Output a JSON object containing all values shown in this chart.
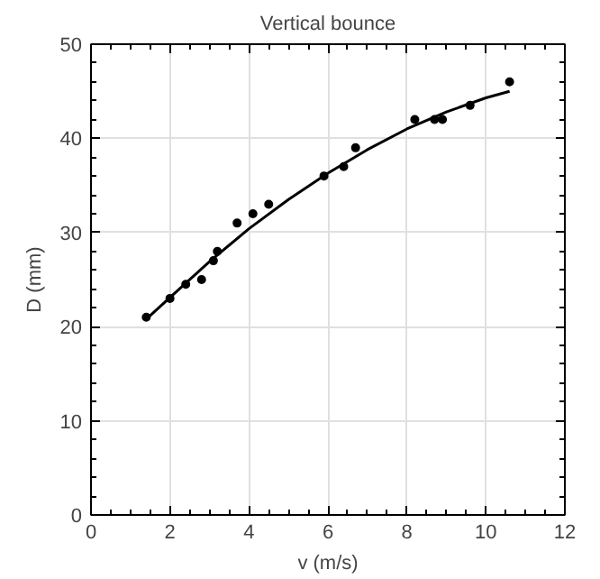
{
  "chart_data": {
    "type": "scatter",
    "title": "Vertical bounce",
    "xlabel": "v (m/s)",
    "ylabel": "D (mm)",
    "xlim": [
      0,
      12
    ],
    "ylim": [
      0,
      50
    ],
    "xticks": [
      0,
      2,
      4,
      6,
      8,
      10,
      12
    ],
    "yticks": [
      0,
      10,
      20,
      30,
      40,
      50
    ],
    "grid": true,
    "marker": "circle",
    "series": [
      {
        "color": "#000000",
        "x": [
          1.4,
          2.0,
          2.4,
          2.8,
          3.1,
          3.2,
          3.7,
          4.1,
          4.5,
          5.9,
          6.4,
          6.7,
          8.2,
          8.7,
          8.9,
          9.6,
          10.6
        ],
        "values": [
          21,
          23,
          24.5,
          25,
          27,
          28,
          31,
          32,
          33,
          36,
          37,
          39,
          42,
          42,
          42,
          43.5,
          46
        ]
      },
      {
        "type": "line",
        "color": "#000000",
        "marker": "none",
        "x": [
          1.4,
          2,
          3,
          4,
          5,
          6,
          7,
          8,
          9,
          10,
          10.6
        ],
        "values": [
          20.8,
          23.1,
          26.9,
          30.4,
          33.5,
          36.3,
          38.8,
          41,
          42.8,
          44.3,
          45
        ]
      }
    ]
  }
}
